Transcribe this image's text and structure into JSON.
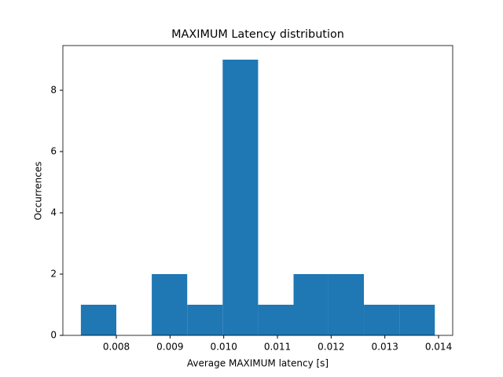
{
  "chart_data": {
    "type": "histogram",
    "title": "MAXIMUM Latency distribution",
    "x_label": "Average MAXIMUM latency [s]",
    "y_label": "Occurrences",
    "bins": [
      0.00734,
      0.008,
      0.00866,
      0.00932,
      0.00998,
      0.01064,
      0.0113,
      0.01195,
      0.01261,
      0.01327,
      0.01393
    ],
    "counts": [
      1,
      0,
      2,
      1,
      9,
      1,
      2,
      2,
      1,
      1
    ],
    "color": "#1f77b4",
    "xlim": [
      0.007005,
      0.014263
    ],
    "xticks": [
      0.008,
      0.009,
      {
        "value": 0.01,
        "label": "0.010"
      },
      0.011,
      0.012,
      0.013,
      0.014
    ],
    "ylim": [
      0,
      9.46
    ],
    "yticks": [
      0,
      2,
      4,
      6,
      8
    ]
  }
}
